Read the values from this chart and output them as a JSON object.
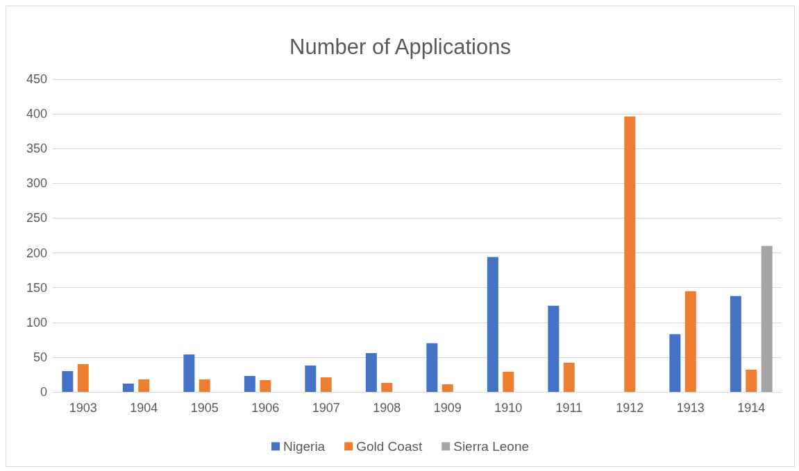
{
  "chart_data": {
    "type": "bar",
    "title": "Number of Applications",
    "categories": [
      "1903",
      "1904",
      "1905",
      "1906",
      "1907",
      "1908",
      "1909",
      "1910",
      "1911",
      "1912",
      "1913",
      "1914"
    ],
    "series": [
      {
        "name": "Nigeria",
        "color": "#4472c4",
        "values": [
          30,
          12,
          54,
          23,
          38,
          56,
          70,
          194,
          124,
          null,
          83,
          138
        ]
      },
      {
        "name": "Gold Coast",
        "color": "#ed7d31",
        "values": [
          40,
          18,
          18,
          17,
          21,
          13,
          11,
          29,
          42,
          396,
          145,
          32
        ]
      },
      {
        "name": "Sierra Leone",
        "color": "#a5a5a5",
        "values": [
          null,
          null,
          null,
          null,
          null,
          null,
          null,
          null,
          null,
          null,
          null,
          210
        ]
      }
    ],
    "ylim": [
      0,
      450
    ],
    "yticks": [
      0,
      50,
      100,
      150,
      200,
      250,
      300,
      350,
      400,
      450
    ],
    "grid": "y",
    "legend": "bottom"
  }
}
